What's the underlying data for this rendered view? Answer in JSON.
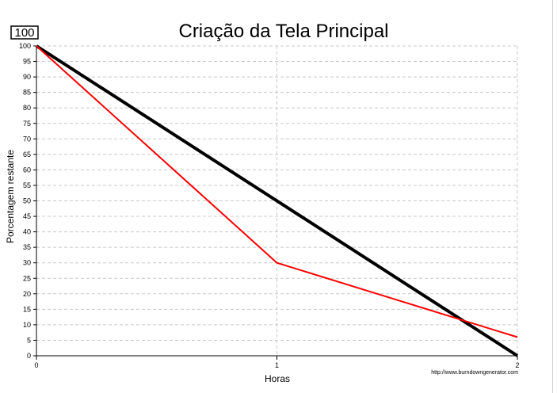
{
  "badge": "100",
  "credit": "http://www.burndowngenerator.com",
  "colors": {
    "ideal": "#000000",
    "actual": "#ff0000",
    "grid": "#c8c8c8"
  },
  "chart_data": {
    "type": "line",
    "title": "Criação da Tela Principal",
    "xlabel": "Horas",
    "ylabel": "Porcentagem restante",
    "xlim": [
      0,
      2
    ],
    "ylim": [
      0,
      100
    ],
    "x_ticks": [
      0,
      1,
      2
    ],
    "y_ticks": [
      0,
      5,
      10,
      15,
      20,
      25,
      30,
      35,
      40,
      45,
      50,
      55,
      60,
      65,
      70,
      75,
      80,
      85,
      90,
      95,
      100
    ],
    "grid": true,
    "series": [
      {
        "key": "ideal",
        "x": [
          0,
          2
        ],
        "y": [
          100,
          0
        ]
      },
      {
        "key": "actual",
        "x": [
          0,
          1,
          2
        ],
        "y": [
          100,
          30,
          6
        ]
      }
    ]
  }
}
